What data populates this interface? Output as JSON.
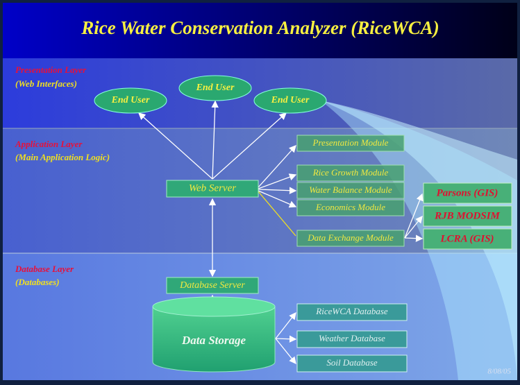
{
  "title": "Rice Water Conservation Analyzer (RiceWCA)",
  "layers": [
    {
      "name": "Presentation Layer",
      "note": "(Web Interfaces)"
    },
    {
      "name": "Application Layer",
      "note": "(Main Application Logic)"
    },
    {
      "name": "Database Layer",
      "note": "(Databases)"
    }
  ],
  "end_users": [
    "End User",
    "End User",
    "End User"
  ],
  "web_server": "Web Server",
  "modules": [
    "Presentation Module",
    "Rice Growth Module",
    "Water Balance Module",
    "Economics Module",
    "Data Exchange Module"
  ],
  "external_systems": [
    "Parsons (GIS)",
    "RJB MODSIM",
    "LCRA (GIS)"
  ],
  "database_server": "Database Server",
  "data_storage": "Data Storage",
  "databases": [
    "RiceWCA Database",
    "Weather Database",
    "Soil Database"
  ],
  "date": "8/08/05"
}
